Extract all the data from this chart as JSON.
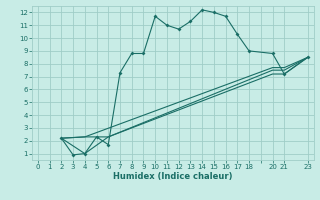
{
  "xlabel": "Humidex (Indice chaleur)",
  "xlim": [
    -0.5,
    23.5
  ],
  "ylim": [
    0.5,
    12.5
  ],
  "xticks": [
    0,
    1,
    2,
    3,
    4,
    5,
    6,
    7,
    8,
    9,
    10,
    11,
    12,
    13,
    14,
    15,
    16,
    17,
    18,
    19,
    20,
    21,
    23
  ],
  "yticks": [
    1,
    2,
    3,
    4,
    5,
    6,
    7,
    8,
    9,
    10,
    11,
    12
  ],
  "bg_color": "#c8ece6",
  "grid_color": "#a0cdc7",
  "line_color": "#1a6e66",
  "lines": [
    {
      "x": [
        2,
        3,
        4,
        5,
        6,
        7,
        8,
        9,
        10,
        11,
        12,
        13,
        14,
        15,
        16,
        17,
        18,
        20,
        21,
        23
      ],
      "y": [
        2.2,
        0.9,
        1.0,
        2.3,
        1.7,
        7.3,
        8.8,
        8.8,
        11.7,
        11.0,
        10.7,
        11.3,
        12.2,
        12.0,
        11.7,
        10.3,
        9.0,
        8.8,
        7.2,
        8.5
      ],
      "marker": true
    },
    {
      "x": [
        2,
        4,
        6,
        20,
        21,
        23
      ],
      "y": [
        2.2,
        1.0,
        2.3,
        7.2,
        7.2,
        8.5
      ],
      "marker": false
    },
    {
      "x": [
        2,
        4,
        6,
        20,
        21,
        23
      ],
      "y": [
        2.2,
        2.3,
        2.3,
        7.5,
        7.5,
        8.5
      ],
      "marker": false
    },
    {
      "x": [
        2,
        4,
        20,
        21,
        23
      ],
      "y": [
        2.2,
        2.3,
        7.7,
        7.7,
        8.5
      ],
      "marker": false
    }
  ]
}
